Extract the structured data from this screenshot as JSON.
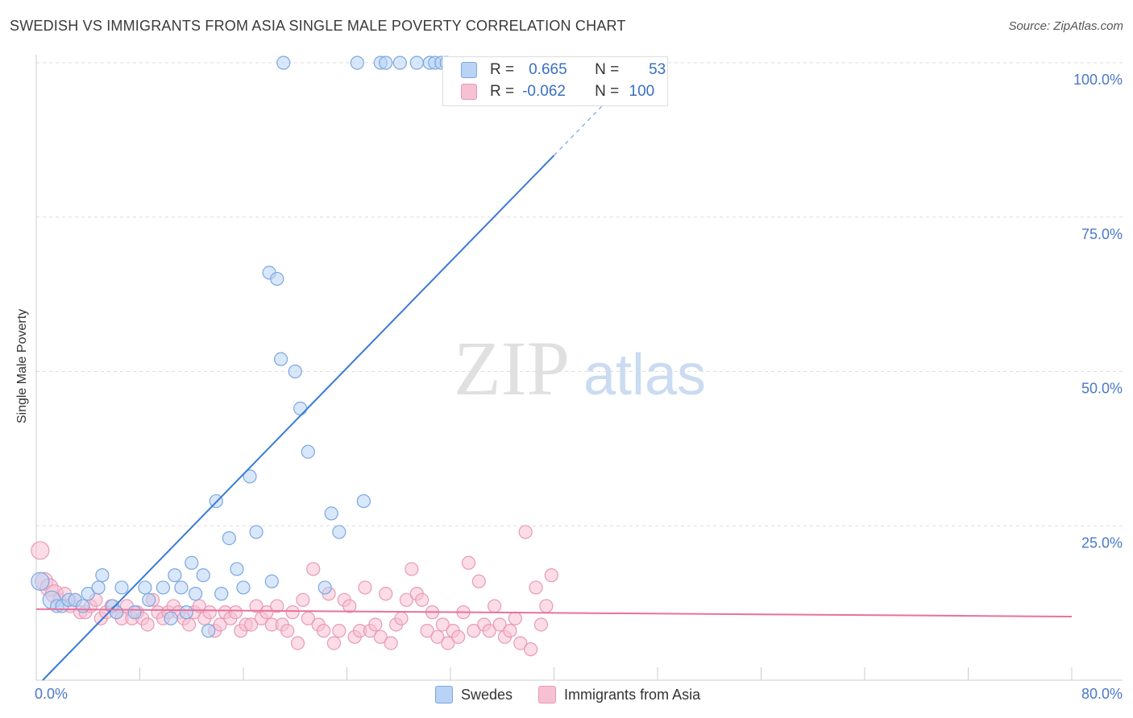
{
  "title": "SWEDISH VS IMMIGRANTS FROM ASIA SINGLE MALE POVERTY CORRELATION CHART",
  "source": "Source: ZipAtlas.com",
  "watermark": {
    "zip": "ZIP",
    "atlas": "atlas"
  },
  "colors": {
    "blue": "#3a7bd5",
    "blue_fill": "#b8d3f5",
    "pink": "#e8729a",
    "pink_fill": "#f7c0d3",
    "axis_text": "#4a78c8",
    "grid": "#dddddd"
  },
  "legend": {
    "rows": [
      {
        "r_label": "R =",
        "r_value": "0.665",
        "n_label": "N =",
        "n_value": "53"
      },
      {
        "r_label": "R =",
        "r_value": "-0.062",
        "n_label": "N =",
        "n_value": "100"
      }
    ]
  },
  "bottom_legend": [
    "Swedes",
    "Immigrants from Asia"
  ],
  "chart_data": {
    "type": "scatter",
    "title": "SWEDISH VS IMMIGRANTS FROM ASIA SINGLE MALE POVERTY CORRELATION CHART",
    "xlabel": "",
    "ylabel": "Single Male Poverty",
    "x_ticks": [
      "0.0%",
      "80.0%"
    ],
    "y_ticks": [
      "25.0%",
      "50.0%",
      "75.0%",
      "100.0%"
    ],
    "xlim": [
      0,
      80
    ],
    "ylim": [
      0,
      100
    ],
    "grid": true,
    "series": [
      {
        "name": "Swedes",
        "x": [
          0.3,
          1.2,
          1.6,
          2.0,
          2.5,
          3.0,
          3.6,
          4.0,
          4.8,
          5.1,
          5.9,
          6.2,
          6.6,
          7.6,
          8.4,
          8.7,
          9.8,
          10.4,
          10.7,
          11.2,
          11.6,
          12.0,
          12.3,
          12.9,
          13.3,
          13.9,
          14.3,
          14.9,
          15.5,
          16.0,
          16.5,
          17.0,
          18.0,
          18.2,
          18.6,
          18.9,
          19.1,
          20.0,
          20.4,
          21.0,
          22.3,
          22.8,
          23.4,
          24.8,
          25.3,
          26.6,
          27.0,
          28.1,
          29.4,
          30.4,
          30.8,
          31.3,
          31.7
        ],
        "y": [
          16,
          13,
          12,
          12,
          13,
          13,
          12,
          14,
          15,
          17,
          12,
          11,
          15,
          11,
          15,
          13,
          15,
          10,
          17,
          15,
          11,
          19,
          14,
          17,
          8,
          29,
          14,
          23,
          18,
          15,
          33,
          24,
          66,
          16,
          65,
          52,
          100,
          50,
          44,
          37,
          15,
          27,
          24,
          100,
          29,
          100,
          100,
          100,
          100,
          100,
          100,
          100,
          100
        ]
      },
      {
        "name": "Immigrants from Asia",
        "x": [
          0.3,
          0.6,
          1.0,
          1.4,
          1.8,
          2.2,
          2.6,
          3.0,
          3.4,
          3.8,
          4.2,
          4.6,
          5.0,
          5.4,
          5.8,
          6.2,
          6.6,
          7.0,
          7.4,
          7.8,
          8.2,
          8.6,
          9.0,
          9.4,
          9.8,
          10.2,
          10.6,
          11.0,
          11.4,
          11.8,
          12.2,
          12.6,
          13.0,
          13.4,
          13.8,
          14.2,
          14.6,
          15.0,
          15.4,
          15.8,
          16.2,
          16.6,
          17.0,
          17.4,
          17.8,
          18.2,
          18.6,
          19.0,
          19.4,
          19.8,
          20.2,
          20.6,
          21.0,
          21.4,
          21.8,
          22.2,
          22.6,
          23.0,
          23.4,
          23.8,
          24.2,
          24.6,
          25.0,
          25.4,
          25.8,
          26.2,
          26.6,
          27.0,
          27.4,
          27.8,
          28.2,
          28.6,
          29.0,
          29.4,
          29.8,
          30.2,
          30.6,
          31.0,
          31.4,
          31.8,
          32.2,
          32.6,
          33.0,
          33.4,
          33.8,
          34.2,
          34.6,
          35.0,
          35.4,
          35.8,
          36.2,
          36.6,
          37.0,
          37.4,
          37.8,
          38.2,
          38.6,
          39.0,
          39.4,
          39.8
        ],
        "y": [
          21,
          16,
          15,
          14,
          13,
          14,
          12,
          13,
          11,
          11,
          12,
          13,
          10,
          11,
          12,
          11,
          10,
          12,
          10,
          11,
          10,
          9,
          13,
          11,
          10,
          11,
          12,
          11,
          10,
          9,
          11,
          12,
          10,
          11,
          8,
          9,
          11,
          10,
          11,
          8,
          9,
          9,
          12,
          10,
          11,
          9,
          12,
          9,
          8,
          11,
          6,
          13,
          10,
          18,
          9,
          8,
          14,
          6,
          8,
          13,
          12,
          7,
          8,
          15,
          8,
          9,
          7,
          14,
          6,
          9,
          10,
          13,
          18,
          14,
          13,
          8,
          11,
          7,
          9,
          6,
          8,
          7,
          11,
          19,
          8,
          16,
          9,
          8,
          12,
          9,
          7,
          8,
          10,
          6,
          24,
          5,
          15,
          9,
          12,
          17
        ]
      }
    ],
    "trendlines": [
      {
        "series": "Swedes",
        "x": [
          0.5,
          40
        ],
        "y": [
          0,
          85
        ]
      },
      {
        "series": "Immigrants from Asia",
        "x": [
          0,
          80
        ],
        "y": [
          11.5,
          10.3
        ]
      }
    ]
  }
}
